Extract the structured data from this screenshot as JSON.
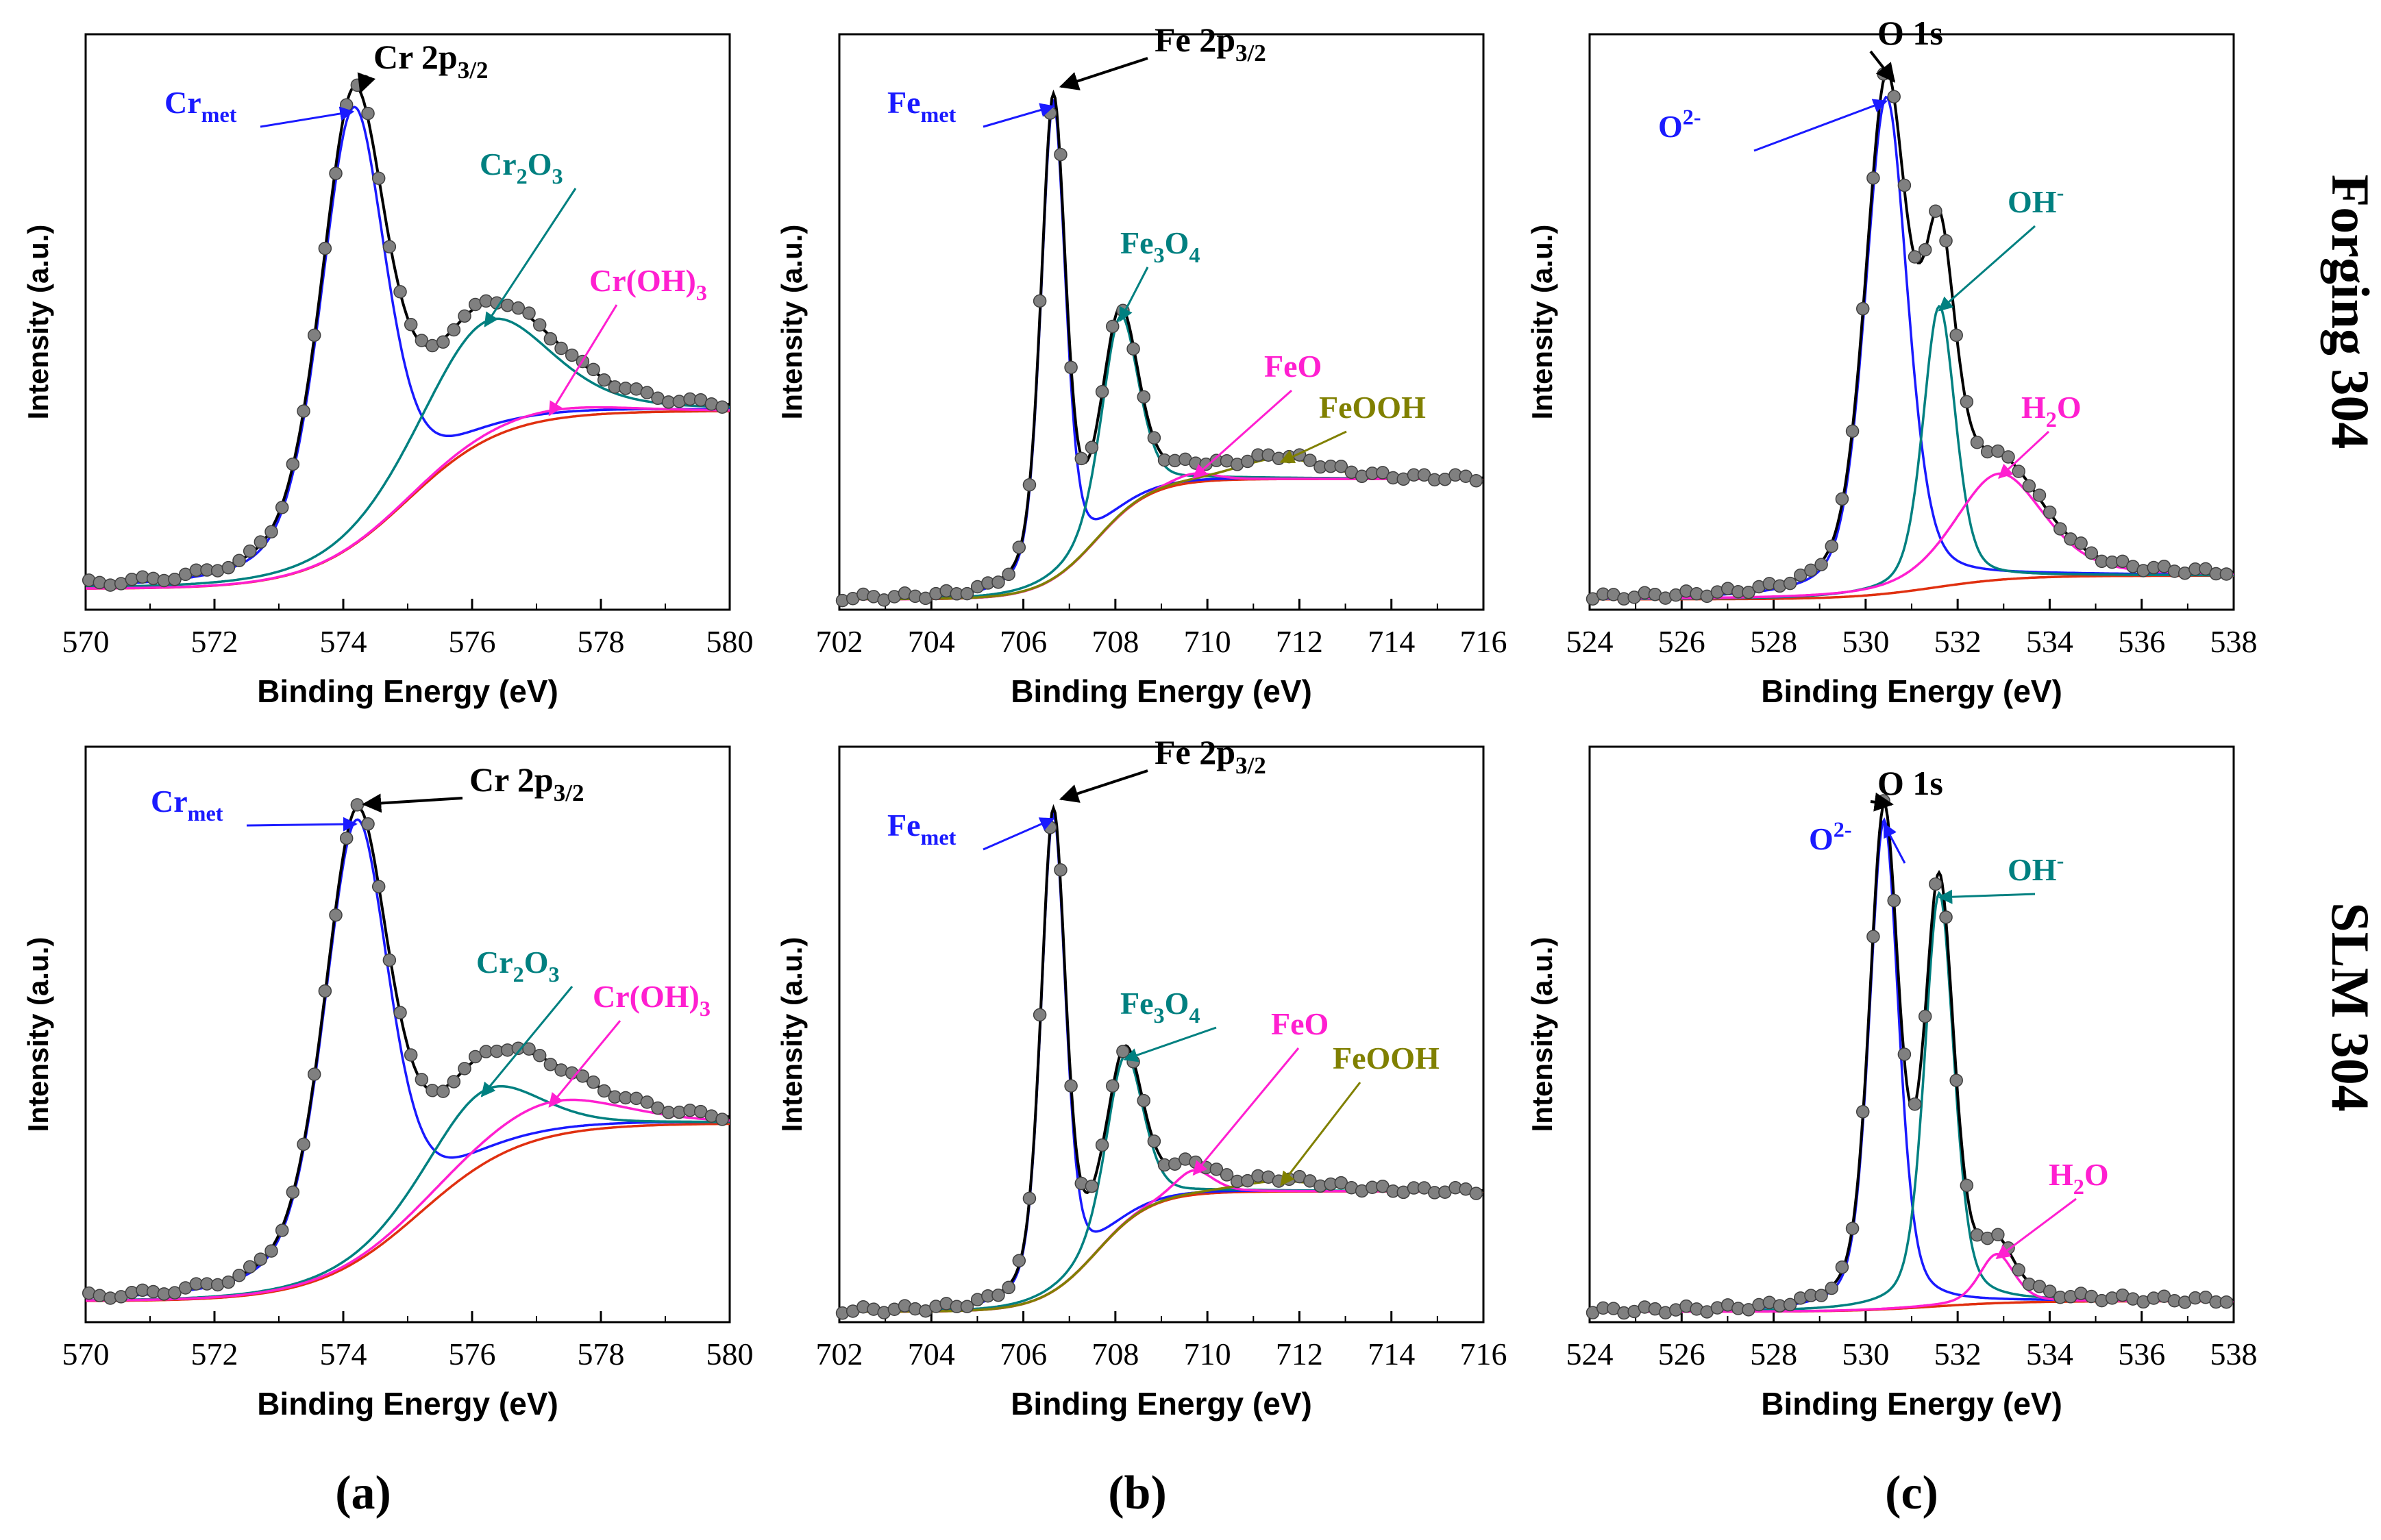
{
  "colors": {
    "measured": "#808080",
    "envelope": "#000000",
    "background": "#e03010",
    "metal": "#1a1aff",
    "oxide": "#008080",
    "hydroxide": "#ff1fd0",
    "feo": "#ff1fd0",
    "feooh": "#808000"
  },
  "row_labels": [
    "Forging 304",
    "SLM 304"
  ],
  "panel_letters": [
    "(a)",
    "(b)",
    "(c)"
  ],
  "chart_data": [
    {
      "type": "line",
      "row": "Forging 304",
      "panel": "(a)",
      "title": "Cr 2p3/2",
      "xlabel": "Binding Energy (eV)",
      "ylabel": "Intensity (a.u.)",
      "xlim": [
        570,
        580
      ],
      "ylim": [
        0,
        1.1
      ],
      "xticks": [
        "570",
        "572",
        "574",
        "576",
        "578",
        "580"
      ],
      "baseline": {
        "y0": 0.04,
        "y1": 0.38,
        "center": 575.0,
        "width": 0.75
      },
      "peaks": [
        {
          "name": "Crmet",
          "label": "Cr",
          "sub": "met",
          "center": 574.15,
          "height": 0.96,
          "width": 0.6
        },
        {
          "name": "Cr2O3",
          "label": "Cr2O3",
          "center": 576.2,
          "height": 0.55,
          "width": 1.15
        },
        {
          "name": "Cr(OH)3",
          "label": "Cr(OH)3",
          "center": 577.2,
          "height": 0.38,
          "width": 1.3
        }
      ]
    },
    {
      "type": "line",
      "row": "Forging 304",
      "panel": "(b)",
      "title": "Fe 2p3/2",
      "xlabel": "Binding Energy (eV)",
      "ylabel": "Intensity (a.u.)",
      "xlim": [
        702,
        716
      ],
      "ylim": [
        0,
        1.1
      ],
      "xticks": [
        "702",
        "704",
        "706",
        "708",
        "710",
        "712",
        "714",
        "716"
      ],
      "baseline": {
        "y0": 0.02,
        "y1": 0.25,
        "center": 707.6,
        "width": 0.6
      },
      "peaks": [
        {
          "name": "Femet",
          "label": "Fe",
          "sub": "met",
          "center": 706.65,
          "height": 0.97,
          "width": 0.32
        },
        {
          "name": "Fe3O4",
          "label": "Fe3O4",
          "center": 708.1,
          "height": 0.56,
          "width": 0.48
        },
        {
          "name": "FeO",
          "label": "FeO",
          "center": 709.7,
          "height": 0.26,
          "width": 0.55
        },
        {
          "name": "FeOOH",
          "label": "FeOOH",
          "center": 711.6,
          "height": 0.29,
          "width": 1.1
        }
      ]
    },
    {
      "type": "line",
      "row": "Forging 304",
      "panel": "(c)",
      "title": "O 1s",
      "xlabel": "Binding Energy (eV)",
      "ylabel": "Intensity (a.u.)",
      "xlim": [
        524,
        538
      ],
      "ylim": [
        0,
        1.1
      ],
      "xticks": [
        "524",
        "526",
        "528",
        "530",
        "532",
        "534",
        "536",
        "538"
      ],
      "baseline": {
        "y0": 0.02,
        "y1": 0.065,
        "center": 531.5,
        "width": 0.9
      },
      "peaks": [
        {
          "name": "O2-",
          "label": "O2-",
          "center": 530.45,
          "height": 0.98,
          "width": 0.55
        },
        {
          "name": "OH-",
          "label": "OH-",
          "center": 531.6,
          "height": 0.58,
          "width": 0.42
        },
        {
          "name": "H2O",
          "label": "H2O",
          "center": 532.9,
          "height": 0.26,
          "width": 1.15
        }
      ]
    },
    {
      "type": "line",
      "row": "SLM 304",
      "panel": "(a)",
      "title": "Cr 2p3/2",
      "xlabel": "Binding Energy (eV)",
      "ylabel": "Intensity (a.u.)",
      "xlim": [
        570,
        580
      ],
      "ylim": [
        0,
        1.1
      ],
      "xticks": [
        "570",
        "572",
        "574",
        "576",
        "578",
        "580"
      ],
      "baseline": {
        "y0": 0.04,
        "y1": 0.38,
        "center": 575.2,
        "width": 0.8
      },
      "peaks": [
        {
          "name": "Crmet",
          "label": "Cr",
          "sub": "met",
          "center": 574.2,
          "height": 0.96,
          "width": 0.6
        },
        {
          "name": "Cr2O3",
          "label": "Cr2O3",
          "center": 576.15,
          "height": 0.44,
          "width": 1.0
        },
        {
          "name": "Cr(OH)3",
          "label": "Cr(OH)3",
          "center": 577.2,
          "height": 0.42,
          "width": 1.3
        }
      ]
    },
    {
      "type": "line",
      "row": "SLM 304",
      "panel": "(b)",
      "title": "Fe 2p3/2",
      "xlabel": "Binding Energy (eV)",
      "ylabel": "Intensity (a.u.)",
      "xlim": [
        702,
        716
      ],
      "ylim": [
        0,
        1.1
      ],
      "xticks": [
        "702",
        "704",
        "706",
        "708",
        "710",
        "712",
        "714",
        "716"
      ],
      "baseline": {
        "y0": 0.02,
        "y1": 0.25,
        "center": 707.6,
        "width": 0.6
      },
      "peaks": [
        {
          "name": "Femet",
          "label": "Fe",
          "sub": "met",
          "center": 706.65,
          "height": 0.97,
          "width": 0.32
        },
        {
          "name": "Fe3O4",
          "label": "Fe3O4",
          "center": 708.2,
          "height": 0.51,
          "width": 0.48
        },
        {
          "name": "FeO",
          "label": "FeO",
          "center": 709.7,
          "height": 0.29,
          "width": 0.5
        },
        {
          "name": "FeOOH",
          "label": "FeOOH",
          "center": 711.6,
          "height": 0.27,
          "width": 1.1
        }
      ]
    },
    {
      "type": "line",
      "row": "SLM 304",
      "panel": "(c)",
      "title": "O 1s",
      "xlabel": "Binding Energy (eV)",
      "ylabel": "Intensity (a.u.)",
      "xlim": [
        524,
        538
      ],
      "ylim": [
        0,
        1.1
      ],
      "xticks": [
        "524",
        "526",
        "528",
        "530",
        "532",
        "534",
        "536",
        "538"
      ],
      "baseline": {
        "y0": 0.02,
        "y1": 0.04,
        "center": 531.5,
        "width": 0.9
      },
      "peaks": [
        {
          "name": "O2-",
          "label": "O2-",
          "center": 530.4,
          "height": 0.96,
          "width": 0.38
        },
        {
          "name": "OH-",
          "label": "OH-",
          "center": 531.6,
          "height": 0.82,
          "width": 0.38
        },
        {
          "name": "H2O",
          "label": "H2O",
          "center": 532.85,
          "height": 0.13,
          "width": 0.45
        }
      ]
    }
  ]
}
